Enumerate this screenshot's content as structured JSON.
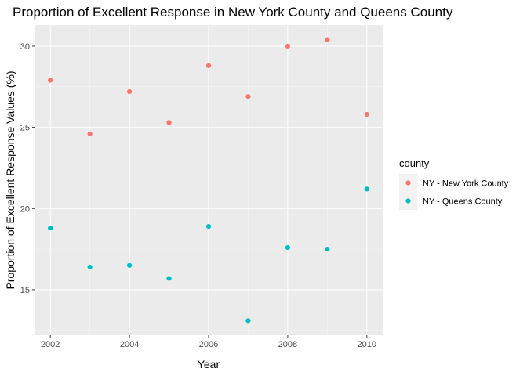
{
  "chart_data": {
    "type": "scatter",
    "title": "Proportion of Excellent Response in New York County and Queens County",
    "xlabel": "Year",
    "ylabel": "Proportion of Excellent Response Values (%)",
    "xlim": [
      2001.6,
      2010.4
    ],
    "ylim": [
      12.2,
      31.3
    ],
    "x_ticks": [
      2002,
      2004,
      2006,
      2008,
      2010
    ],
    "x_minor": [
      2003,
      2005,
      2007,
      2009
    ],
    "y_ticks": [
      15,
      20,
      25,
      30
    ],
    "y_minor": [
      12.5,
      17.5,
      22.5,
      27.5
    ],
    "grid": true,
    "legend": {
      "title": "county",
      "placement": "right"
    },
    "series": [
      {
        "name": "NY - New York County",
        "color": "#F8766D",
        "points": [
          {
            "x": 2002,
            "y": 27.9
          },
          {
            "x": 2003,
            "y": 24.6
          },
          {
            "x": 2004,
            "y": 27.2
          },
          {
            "x": 2005,
            "y": 25.3
          },
          {
            "x": 2006,
            "y": 28.8
          },
          {
            "x": 2007,
            "y": 26.9
          },
          {
            "x": 2008,
            "y": 30.0
          },
          {
            "x": 2009,
            "y": 30.4
          },
          {
            "x": 2010,
            "y": 25.8
          }
        ]
      },
      {
        "name": "NY - Queens County",
        "color": "#00BFC4",
        "points": [
          {
            "x": 2002,
            "y": 18.8
          },
          {
            "x": 2003,
            "y": 16.4
          },
          {
            "x": 2004,
            "y": 16.5
          },
          {
            "x": 2005,
            "y": 15.7
          },
          {
            "x": 2006,
            "y": 18.9
          },
          {
            "x": 2007,
            "y": 13.1
          },
          {
            "x": 2008,
            "y": 17.6
          },
          {
            "x": 2009,
            "y": 17.5
          },
          {
            "x": 2010,
            "y": 21.2
          }
        ]
      }
    ]
  }
}
